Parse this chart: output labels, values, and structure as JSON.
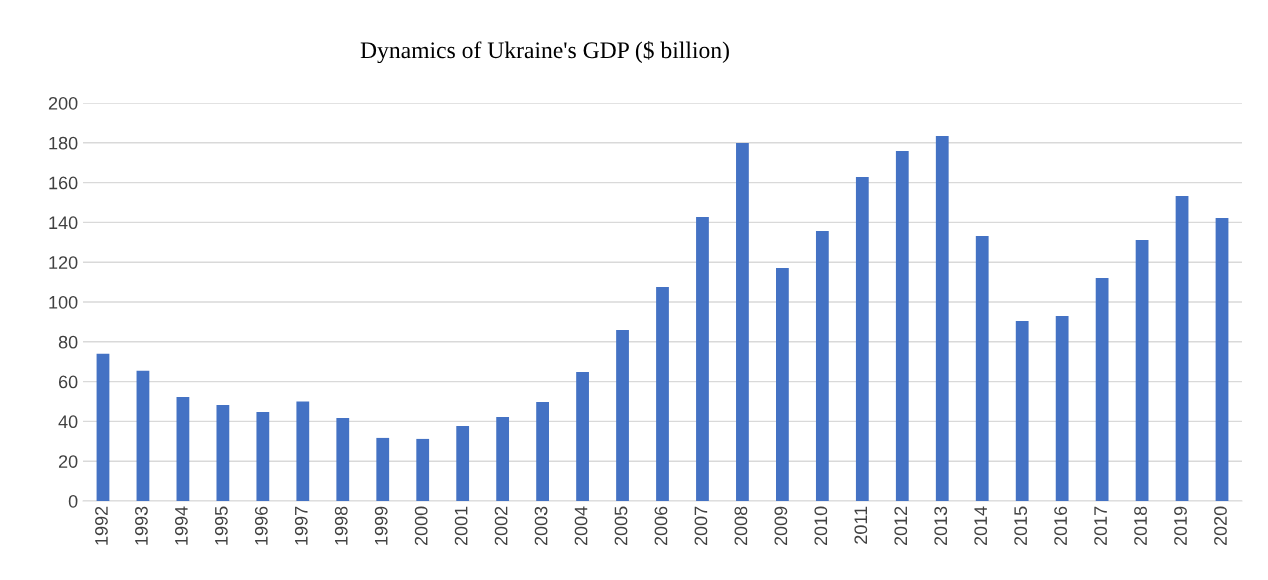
{
  "chart_data": {
    "type": "bar",
    "title": "Dynamics of Ukraine's GDP ($ billion)",
    "categories": [
      "1992",
      "1993",
      "1994",
      "1995",
      "1996",
      "1997",
      "1998",
      "1999",
      "2000",
      "2001",
      "2002",
      "2003",
      "2004",
      "2005",
      "2006",
      "2007",
      "2008",
      "2009",
      "2010",
      "2011",
      "2012",
      "2013",
      "2014",
      "2015",
      "2016",
      "2017",
      "2018",
      "2019",
      "2020"
    ],
    "values": [
      74,
      65.5,
      52.3,
      48.2,
      44.7,
      50,
      41.7,
      31.7,
      31.2,
      37.7,
      42.2,
      49.7,
      64.8,
      85.9,
      107.5,
      142.7,
      179.9,
      117.1,
      135.7,
      162.8,
      175.9,
      183.4,
      133.2,
      90.5,
      93,
      112,
      131.2,
      153.3,
      142.2
    ],
    "color": "#4472c4",
    "ylim": [
      0,
      200
    ],
    "yticks": [
      0,
      20,
      40,
      60,
      80,
      100,
      120,
      140,
      160,
      180,
      200
    ],
    "grid": "y",
    "legend": false
  }
}
